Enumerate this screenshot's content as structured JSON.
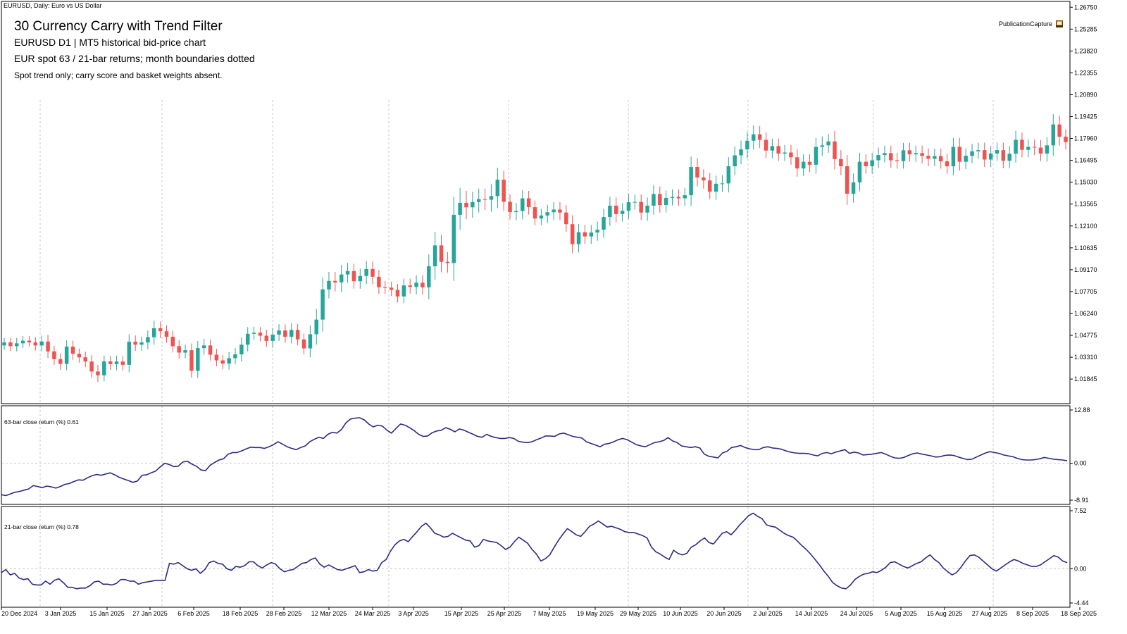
{
  "window": {
    "title": "EURUSD, Daily:  Euro vs US Dollar"
  },
  "annotation": {
    "title": "30  Currency Carry with Trend Filter",
    "line1": "EURUSD  D1  |  MT5 historical bid-price chart",
    "line2": "EUR spot 63 / 21-bar returns; month boundaries dotted",
    "line3": "Spot trend only; carry score and basket weights absent."
  },
  "badge": {
    "label": "PublicationCapture",
    "icon": "capture-icon"
  },
  "colors": {
    "bull": "#26a69a",
    "bear": "#ef5350",
    "line": "#2e2a84",
    "grid": "#c8c8c8",
    "axis": "#000000"
  },
  "chart_data": [
    {
      "type": "candlestick",
      "title": "",
      "ylim": [
        1.002,
        1.2714
      ],
      "y_ticks": [
        "1.26750",
        "1.25285",
        "1.23820",
        "1.22355",
        "1.20890",
        "1.19425",
        "1.17960",
        "1.16495",
        "1.15030",
        "1.13565",
        "1.12100",
        "1.10635",
        "1.09170",
        "1.07705",
        "1.06240",
        "1.04775",
        "1.03310",
        "1.01845"
      ],
      "x_ticks": [
        "20 Dec 2024",
        "3 Jan 2025",
        "15 Jan 2025",
        "27 Jan 2025",
        "6 Feb 2025",
        "18 Feb 2025",
        "28 Feb 2025",
        "12 Mar 2025",
        "24 Mar 2025",
        "3 Apr 2025",
        "15 Apr 2025",
        "25 Apr 2025",
        "7 May 2025",
        "19 May 2025",
        "29 May 2025",
        "10 Jun 2025",
        "20 Jun 2025",
        "2 Jul 2025",
        "14 Jul 2025",
        "24 Jul 2025",
        "5 Aug 2025",
        "15 Aug 2025",
        "27 Aug 2025",
        "8 Sep 2025",
        "18 Sep 2025"
      ],
      "grid": "vertical dotted at month boundaries",
      "close": [
        1.043,
        1.0405,
        1.0424,
        1.0442,
        1.043,
        1.041,
        1.0436,
        1.037,
        1.0318,
        1.0286,
        1.0402,
        1.0354,
        1.033,
        1.0302,
        1.0235,
        1.021,
        1.0303,
        1.0285,
        1.0302,
        1.028,
        1.0435,
        1.0415,
        1.043,
        1.0465,
        1.0525,
        1.0505,
        1.0468,
        1.0405,
        1.0362,
        1.0378,
        1.024,
        1.0392,
        1.041,
        1.0348,
        1.031,
        1.0288,
        1.0325,
        1.035,
        1.0415,
        1.0488,
        1.0495,
        1.0475,
        1.044,
        1.0482,
        1.051,
        1.0468,
        1.0514,
        1.045,
        1.039,
        1.0485,
        1.0583,
        1.0785,
        1.0842,
        1.0832,
        1.0885,
        1.0908,
        1.084,
        1.0875,
        1.0922,
        1.087,
        1.08,
        1.0797,
        1.0782,
        1.0738,
        1.0812,
        1.0802,
        1.083,
        1.0799,
        1.094,
        1.108,
        1.097,
        1.0962,
        1.1285,
        1.1365,
        1.1335,
        1.137,
        1.139,
        1.1386,
        1.141,
        1.152,
        1.1372,
        1.1303,
        1.131,
        1.1395,
        1.1336,
        1.126,
        1.128,
        1.1302,
        1.132,
        1.13,
        1.1222,
        1.1088,
        1.1168,
        1.114,
        1.1166,
        1.1185,
        1.127,
        1.1346,
        1.129,
        1.1312,
        1.1369,
        1.1371,
        1.13,
        1.1346,
        1.1424,
        1.135,
        1.1398,
        1.1405,
        1.1395,
        1.1416,
        1.1605,
        1.1535,
        1.1515,
        1.144,
        1.1493,
        1.1495,
        1.161,
        1.1683,
        1.1723,
        1.1781,
        1.1824,
        1.1787,
        1.1715,
        1.1745,
        1.1695,
        1.1702,
        1.167,
        1.1595,
        1.164,
        1.162,
        1.174,
        1.175,
        1.1776,
        1.1658,
        1.161,
        1.1426,
        1.1502,
        1.164,
        1.161,
        1.165,
        1.1685,
        1.1698,
        1.165,
        1.1644,
        1.1717,
        1.169,
        1.1698,
        1.168,
        1.166,
        1.1678,
        1.1643,
        1.161,
        1.174,
        1.164,
        1.168,
        1.171,
        1.1718,
        1.1655,
        1.1695,
        1.1718,
        1.1647,
        1.1694,
        1.1787,
        1.172,
        1.174,
        1.1735,
        1.1695,
        1.175,
        1.189,
        1.1808,
        1.1772
      ],
      "high_offset": [
        0.003,
        0.0032,
        0.0035,
        0.0031,
        0.003,
        0.0034,
        0.004,
        0.0045,
        0.0038,
        0.004,
        0.0042,
        0.004,
        0.0035,
        0.0038,
        0.0042,
        0.0045,
        0.004,
        0.0038,
        0.004,
        0.0036,
        0.005,
        0.0042,
        0.004,
        0.0045,
        0.005,
        0.0045,
        0.004,
        0.0042,
        0.004,
        0.0038,
        0.0045,
        0.0048,
        0.0045,
        0.004,
        0.004,
        0.0038,
        0.004,
        0.0042,
        0.0048,
        0.0045,
        0.004,
        0.0038,
        0.004,
        0.0045,
        0.0042,
        0.004,
        0.0045,
        0.004,
        0.004,
        0.006,
        0.007,
        0.008,
        0.006,
        0.006,
        0.0065,
        0.0055,
        0.005,
        0.005,
        0.0055,
        0.005,
        0.0045,
        0.0042,
        0.004,
        0.004,
        0.0045,
        0.0045,
        0.005,
        0.005,
        0.008,
        0.009,
        0.007,
        0.0065,
        0.012,
        0.01,
        0.008,
        0.007,
        0.007,
        0.007,
        0.008,
        0.008,
        0.006,
        0.005,
        0.0055,
        0.0055,
        0.005,
        0.0045,
        0.0045,
        0.005,
        0.005,
        0.005,
        0.005,
        0.006,
        0.0055,
        0.005,
        0.005,
        0.0055,
        0.0055,
        0.006,
        0.0055,
        0.005,
        0.0055,
        0.005,
        0.005,
        0.0055,
        0.006,
        0.005,
        0.005,
        0.005,
        0.005,
        0.005,
        0.007,
        0.006,
        0.0055,
        0.005,
        0.0055,
        0.0055,
        0.006,
        0.006,
        0.006,
        0.006,
        0.006,
        0.0055,
        0.005,
        0.005,
        0.005,
        0.005,
        0.005,
        0.0055,
        0.005,
        0.005,
        0.006,
        0.006,
        0.005,
        0.007,
        0.006,
        0.0075,
        0.006,
        0.006,
        0.005,
        0.005,
        0.005,
        0.005,
        0.005,
        0.005,
        0.005,
        0.005,
        0.005,
        0.005,
        0.005,
        0.005,
        0.005,
        0.005,
        0.006,
        0.006,
        0.005,
        0.005,
        0.005,
        0.005,
        0.005,
        0.005,
        0.005,
        0.005,
        0.006,
        0.005,
        0.005,
        0.005,
        0.005,
        0.0055,
        0.007,
        0.006,
        0.005
      ],
      "low_offset": [
        0.003,
        0.0032,
        0.0035,
        0.0031,
        0.003,
        0.0034,
        0.004,
        0.0045,
        0.0038,
        0.004,
        0.0042,
        0.004,
        0.0035,
        0.0038,
        0.0042,
        0.0045,
        0.004,
        0.0038,
        0.004,
        0.0036,
        0.005,
        0.0042,
        0.004,
        0.0045,
        0.005,
        0.0045,
        0.004,
        0.0042,
        0.004,
        0.0038,
        0.0045,
        0.0048,
        0.0045,
        0.004,
        0.004,
        0.0038,
        0.004,
        0.0042,
        0.0048,
        0.0045,
        0.004,
        0.0038,
        0.004,
        0.0045,
        0.0042,
        0.004,
        0.0045,
        0.004,
        0.004,
        0.006,
        0.007,
        0.008,
        0.006,
        0.006,
        0.0065,
        0.0055,
        0.005,
        0.005,
        0.0055,
        0.005,
        0.0045,
        0.0042,
        0.004,
        0.004,
        0.0045,
        0.0045,
        0.005,
        0.005,
        0.008,
        0.009,
        0.007,
        0.0065,
        0.012,
        0.01,
        0.008,
        0.007,
        0.007,
        0.007,
        0.008,
        0.008,
        0.006,
        0.005,
        0.0055,
        0.0055,
        0.005,
        0.0045,
        0.0045,
        0.005,
        0.005,
        0.005,
        0.005,
        0.006,
        0.0055,
        0.005,
        0.005,
        0.0055,
        0.0055,
        0.006,
        0.0055,
        0.005,
        0.0055,
        0.005,
        0.005,
        0.0055,
        0.006,
        0.005,
        0.005,
        0.005,
        0.005,
        0.005,
        0.007,
        0.006,
        0.0055,
        0.005,
        0.0055,
        0.0055,
        0.006,
        0.006,
        0.006,
        0.006,
        0.006,
        0.0055,
        0.005,
        0.005,
        0.005,
        0.005,
        0.005,
        0.0055,
        0.005,
        0.005,
        0.006,
        0.006,
        0.005,
        0.007,
        0.006,
        0.0075,
        0.006,
        0.006,
        0.005,
        0.005,
        0.005,
        0.005,
        0.005,
        0.005,
        0.005,
        0.005,
        0.005,
        0.005,
        0.005,
        0.005,
        0.005,
        0.005,
        0.006,
        0.006,
        0.005,
        0.005,
        0.005,
        0.005,
        0.005,
        0.005,
        0.005,
        0.005,
        0.006,
        0.005,
        0.005,
        0.005,
        0.005,
        0.0055,
        0.007,
        0.006,
        0.005
      ]
    },
    {
      "type": "line",
      "title": "63-bar close return (%) 0.61",
      "ylim": [
        -8.91,
        12.88
      ],
      "y_ticks": [
        "12.88",
        "0.00",
        "-8.91"
      ],
      "zero_line": true,
      "values": [
        -7.6,
        -7.8,
        -7.4,
        -7.0,
        -6.8,
        -6.5,
        -6.2,
        -5.4,
        -5.6,
        -5.9,
        -5.5,
        -5.7,
        -6.0,
        -5.6,
        -5.1,
        -4.9,
        -4.4,
        -4.0,
        -4.1,
        -3.5,
        -3.0,
        -2.7,
        -2.9,
        -2.6,
        -2.3,
        -2.8,
        -3.4,
        -3.8,
        -4.2,
        -4.6,
        -4.3,
        -2.9,
        -2.8,
        -2.3,
        -1.9,
        -0.9,
        0.0,
        -0.3,
        -0.8,
        -0.7,
        0.3,
        0.5,
        -0.2,
        -0.7,
        -1.6,
        -1.8,
        -0.5,
        0.2,
        0.8,
        1.1,
        2.2,
        2.6,
        2.6,
        3.0,
        3.5,
        3.9,
        3.8,
        3.8,
        3.6,
        4.0,
        4.5,
        5.2,
        4.6,
        4.0,
        3.6,
        3.3,
        3.8,
        4.2,
        5.2,
        5.8,
        6.3,
        6.0,
        7.0,
        7.5,
        7.3,
        8.2,
        9.8,
        10.7,
        10.9,
        11.0,
        10.5,
        9.5,
        8.8,
        9.2,
        9.0,
        8.0,
        7.3,
        8.4,
        9.5,
        9.2,
        8.6,
        7.9,
        7.0,
        6.5,
        6.6,
        7.4,
        7.8,
        8.0,
        8.6,
        8.2,
        7.6,
        8.3,
        8.0,
        7.5,
        7.0,
        6.5,
        6.3,
        7.0,
        6.5,
        6.2,
        6.0,
        6.0,
        6.2,
        6.0,
        5.3,
        5.1,
        5.0,
        5.2,
        5.7,
        6.1,
        6.6,
        6.6,
        6.5,
        7.1,
        7.3,
        6.9,
        6.5,
        6.3,
        6.1,
        5.2,
        4.8,
        4.4,
        4.0,
        4.6,
        4.8,
        5.2,
        5.7,
        6.0,
        5.7,
        5.1,
        4.5,
        4.2,
        4.0,
        4.5,
        5.0,
        5.2,
        5.5,
        6.2,
        5.4,
        5.0,
        4.2,
        4.0,
        3.8,
        4.0,
        3.7,
        2.2,
        1.7,
        1.5,
        1.3,
        2.5,
        2.9,
        3.8,
        4.0,
        4.3,
        3.8,
        3.5,
        3.3,
        3.3,
        3.8,
        4.0,
        3.7,
        3.6,
        3.4,
        3.0,
        2.7,
        2.5,
        2.4,
        2.4,
        2.3,
        2.0,
        1.8,
        2.4,
        2.6,
        2.3,
        2.7,
        3.0,
        3.3,
        2.4,
        2.7,
        2.5,
        2.0,
        2.1,
        2.2,
        2.4,
        2.6,
        2.2,
        1.7,
        1.3,
        1.2,
        1.4,
        1.9,
        2.3,
        2.5,
        2.2,
        2.0,
        1.8,
        1.5,
        1.6,
        1.9,
        2.0,
        1.9,
        1.5,
        1.2,
        0.9,
        1.0,
        1.5,
        2.0,
        2.5,
        2.8,
        2.6,
        2.4,
        2.0,
        1.8,
        1.6,
        1.2,
        0.9,
        0.8,
        0.8,
        0.9,
        1.1,
        1.4,
        1.2,
        1.0,
        0.9,
        0.8,
        0.61
      ],
      "line_color": "#2e2a84"
    },
    {
      "type": "line",
      "title": "21-bar close return (%) 0.78",
      "ylim": [
        -4.44,
        7.52
      ],
      "y_ticks": [
        "7.52",
        "0.00",
        "-4.44"
      ],
      "zero_line": true,
      "values": [
        -0.5,
        -0.1,
        -0.8,
        -0.6,
        -1.2,
        -1.4,
        -1.3,
        -2.0,
        -2.1,
        -2.1,
        -1.6,
        -2.0,
        -1.5,
        -1.3,
        -1.8,
        -2.4,
        -2.4,
        -2.6,
        -2.5,
        -2.5,
        -2.2,
        -1.7,
        -1.6,
        -2.0,
        -2.0,
        -2.1,
        -1.9,
        -1.4,
        -1.4,
        -1.6,
        -1.6,
        -2.0,
        -1.8,
        -1.7,
        -1.6,
        -1.5,
        -1.5,
        -1.5,
        0.7,
        0.6,
        0.8,
        0.4,
        0.0,
        -0.2,
        0.0,
        -0.6,
        -0.1,
        0.8,
        1.0,
        0.7,
        0.6,
        0.0,
        -0.2,
        0.3,
        0.2,
        0.4,
        0.9,
        0.9,
        0.4,
        0.1,
        0.5,
        0.8,
        0.6,
        0.0,
        -0.4,
        -0.2,
        -0.1,
        0.3,
        0.7,
        0.8,
        1.2,
        1.4,
        0.6,
        0.2,
        0.5,
        0.2,
        -0.1,
        -0.2,
        0.0,
        0.2,
        0.4,
        -0.5,
        -0.4,
        -0.1,
        -0.3,
        -0.2,
        0.8,
        1.2,
        2.3,
        3.1,
        3.6,
        3.8,
        3.5,
        4.2,
        4.8,
        5.5,
        5.9,
        5.3,
        4.6,
        4.4,
        4.1,
        4.2,
        4.6,
        4.3,
        4.0,
        3.7,
        3.6,
        2.8,
        3.0,
        3.8,
        3.6,
        3.5,
        3.4,
        3.0,
        2.5,
        2.8,
        3.5,
        4.1,
        3.7,
        3.3,
        2.5,
        1.9,
        1.0,
        1.3,
        1.8,
        2.8,
        3.7,
        4.5,
        5.2,
        4.8,
        4.4,
        4.2,
        4.8,
        5.5,
        5.8,
        6.2,
        5.8,
        5.4,
        5.5,
        5.3,
        5.1,
        4.8,
        4.7,
        4.7,
        4.5,
        4.3,
        4.0,
        2.8,
        2.2,
        1.9,
        1.5,
        1.2,
        2.4,
        2.0,
        1.8,
        2.0,
        2.8,
        3.1,
        3.6,
        4.0,
        3.4,
        3.2,
        3.9,
        4.6,
        4.8,
        4.4,
        5.0,
        5.7,
        6.3,
        6.9,
        7.2,
        6.8,
        6.5,
        5.7,
        5.5,
        5.4,
        5.0,
        4.6,
        4.3,
        4.1,
        3.6,
        3.0,
        2.5,
        1.9,
        1.2,
        0.5,
        -0.3,
        -1.0,
        -1.8,
        -2.2,
        -2.5,
        -2.6,
        -2.1,
        -1.4,
        -1.0,
        -0.7,
        -0.6,
        -0.4,
        -0.5,
        -0.2,
        0.2,
        0.8,
        0.9,
        0.6,
        0.3,
        0.1,
        0.4,
        0.7,
        0.9,
        1.4,
        1.8,
        1.2,
        0.8,
        0.1,
        -0.4,
        -0.8,
        -0.5,
        0.2,
        1.0,
        1.7,
        1.8,
        1.5,
        1.0,
        0.5,
        0.0,
        -0.3,
        0.1,
        0.5,
        0.9,
        1.2,
        1.0,
        0.7,
        0.5,
        0.3,
        0.3,
        0.5,
        0.9,
        1.3,
        1.7,
        1.5,
        1.0,
        0.78
      ],
      "line_color": "#2e2a84"
    }
  ]
}
